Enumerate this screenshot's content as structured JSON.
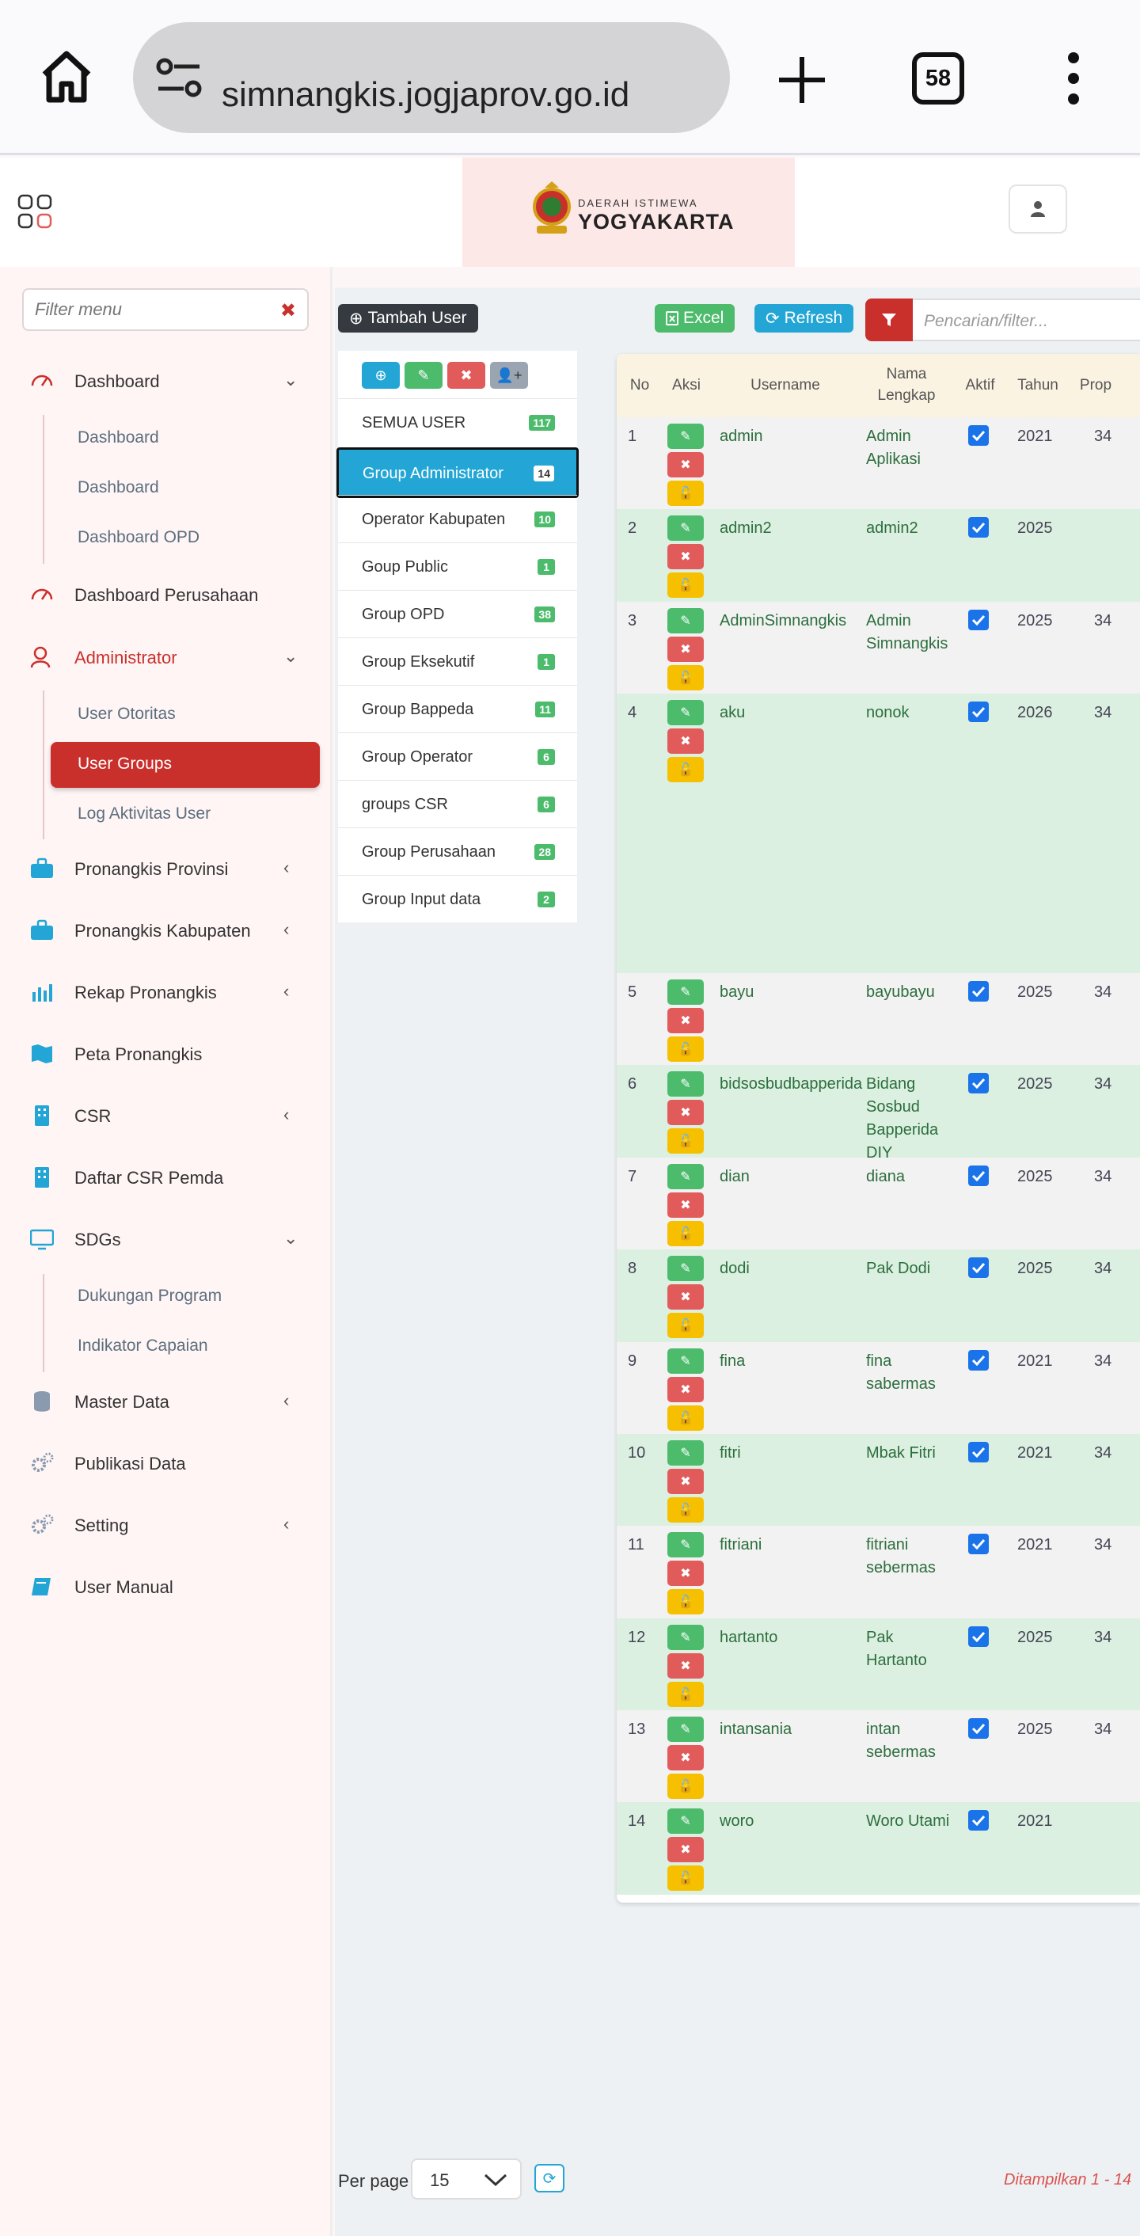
{
  "browser": {
    "url": "simnangkis.jogjaprov.go.id",
    "tab_count": "58"
  },
  "header": {
    "logo_small": "DAERAH ISTIMEWA",
    "logo_big": "YOGYAKARTA"
  },
  "sidebar": {
    "filter_placeholder": "Filter menu",
    "items": [
      {
        "label": "Dashboard",
        "icon": "gauge-icon"
      },
      {
        "label": "Dashboard Perusahaan",
        "icon": "gauge-icon"
      },
      {
        "label": "Administrator",
        "icon": "user-icon"
      },
      {
        "label": "Pronangkis Provinsi",
        "icon": "briefcase-icon"
      },
      {
        "label": "Pronangkis Kabupaten",
        "icon": "briefcase-icon"
      },
      {
        "label": "Rekap Pronangkis",
        "icon": "bar-chart-icon"
      },
      {
        "label": "Peta Pronangkis",
        "icon": "map-icon"
      },
      {
        "label": "CSR",
        "icon": "building-icon"
      },
      {
        "label": "Daftar CSR Pemda",
        "icon": "building-icon"
      },
      {
        "label": "SDGs",
        "icon": "monitor-icon"
      },
      {
        "label": "Master Data",
        "icon": "database-icon"
      },
      {
        "label": "Publikasi Data",
        "icon": "gears-icon"
      },
      {
        "label": "Setting",
        "icon": "gears-icon"
      },
      {
        "label": "User Manual",
        "icon": "book-icon"
      }
    ],
    "dashboard_sub": [
      "Dashboard",
      "Dashboard",
      "Dashboard OPD"
    ],
    "admin_sub": [
      "User Otoritas",
      "User Groups",
      "Log Aktivitas User"
    ],
    "sdgs_sub": [
      "Dukungan Program",
      "Indikator Capaian"
    ]
  },
  "toolbar": {
    "add_label": "Tambah User",
    "excel_label": "Excel",
    "refresh_label": "Refresh",
    "search_placeholder": "Pencarian/filter..."
  },
  "groups": [
    {
      "name": "SEMUA USER",
      "count": "117"
    },
    {
      "name": "Group Administrator",
      "count": "14"
    },
    {
      "name": "Operator Kabupaten",
      "count": "10"
    },
    {
      "name": "Goup Public",
      "count": "1"
    },
    {
      "name": "Group OPD",
      "count": "38"
    },
    {
      "name": "Group Eksekutif",
      "count": "1"
    },
    {
      "name": "Group Bappeda",
      "count": "11"
    },
    {
      "name": "Group Operator",
      "count": "6"
    },
    {
      "name": "groups CSR",
      "count": "6"
    },
    {
      "name": "Group Perusahaan",
      "count": "28"
    },
    {
      "name": "Group Input data",
      "count": "2"
    }
  ],
  "table": {
    "headers": {
      "no": "No",
      "aksi": "Aksi",
      "username": "Username",
      "nama": "Nama Lengkap",
      "aktif": "Aktif",
      "tahun": "Tahun",
      "prop": "Prop"
    },
    "rows": [
      {
        "no": "1",
        "username": "admin",
        "nama": "Admin Aplikasi",
        "tahun": "2021",
        "prop": "34"
      },
      {
        "no": "2",
        "username": "admin2",
        "nama": "admin2",
        "tahun": "2025",
        "prop": ""
      },
      {
        "no": "3",
        "username": "AdminSimnangkis",
        "nama": "Admin Simnangkis",
        "tahun": "2025",
        "prop": "34"
      },
      {
        "no": "4",
        "username": "aku",
        "nama": "nonok",
        "tahun": "2026",
        "prop": "34"
      },
      {
        "no": "5",
        "username": "bayu",
        "nama": "bayubayu",
        "tahun": "2025",
        "prop": "34"
      },
      {
        "no": "6",
        "username": "bidsosbudbapperida",
        "nama": "Bidang Sosbud Bapperida DIY",
        "tahun": "2025",
        "prop": "34"
      },
      {
        "no": "7",
        "username": "dian",
        "nama": "diana",
        "tahun": "2025",
        "prop": "34"
      },
      {
        "no": "8",
        "username": "dodi",
        "nama": "Pak Dodi",
        "tahun": "2025",
        "prop": "34"
      },
      {
        "no": "9",
        "username": "fina",
        "nama": "fina sabermas",
        "tahun": "2021",
        "prop": "34"
      },
      {
        "no": "10",
        "username": "fitri",
        "nama": "Mbak Fitri",
        "tahun": "2021",
        "prop": "34"
      },
      {
        "no": "11",
        "username": "fitriani",
        "nama": "fitriani sebermas",
        "tahun": "2021",
        "prop": "34"
      },
      {
        "no": "12",
        "username": "hartanto",
        "nama": "Pak Hartanto",
        "tahun": "2025",
        "prop": "34"
      },
      {
        "no": "13",
        "username": "intansania",
        "nama": "intan sebermas",
        "tahun": "2025",
        "prop": "34"
      },
      {
        "no": "14",
        "username": "woro",
        "nama": "Woro Utami",
        "tahun": "2021",
        "prop": ""
      }
    ]
  },
  "pager": {
    "label": "Per page",
    "value": "15",
    "info": "Ditampilkan 1 - 14"
  },
  "colors": {
    "accent_red": "#c9302c",
    "info_blue": "#23a6d5",
    "success_green": "#4cbb6c"
  }
}
